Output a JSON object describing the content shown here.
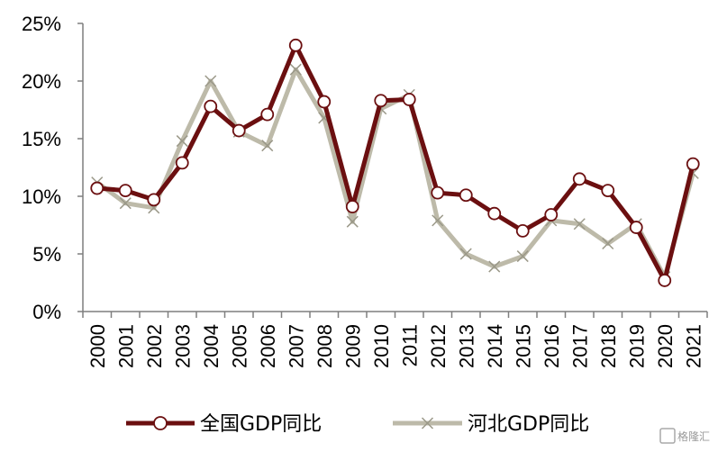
{
  "chart_data": {
    "type": "line",
    "categories": [
      "2000",
      "2001",
      "2002",
      "2003",
      "2004",
      "2005",
      "2006",
      "2007",
      "2008",
      "2009",
      "2010",
      "2011",
      "2012",
      "2013",
      "2014",
      "2015",
      "2016",
      "2017",
      "2018",
      "2019",
      "2020",
      "2021"
    ],
    "series": [
      {
        "name": "全国GDP同比",
        "values": [
          10.7,
          10.5,
          9.7,
          12.9,
          17.8,
          15.7,
          17.1,
          23.1,
          18.2,
          9.1,
          18.3,
          18.4,
          10.3,
          10.1,
          8.5,
          7.0,
          8.4,
          11.5,
          10.5,
          7.3,
          2.7,
          12.8
        ],
        "color": "#6b0f10",
        "marker": "circle"
      },
      {
        "name": "河北GDP同比",
        "values": [
          11.2,
          9.4,
          9.0,
          14.8,
          20.0,
          15.6,
          14.4,
          21.0,
          16.8,
          7.8,
          17.6,
          18.8,
          7.9,
          5.0,
          3.9,
          4.8,
          7.9,
          7.6,
          5.9,
          7.6,
          3.0,
          12.0
        ],
        "color": "#bdbaa9",
        "marker": "x"
      }
    ],
    "yticks": [
      "0%",
      "5%",
      "10%",
      "15%",
      "20%",
      "25%"
    ],
    "ylim": [
      0,
      25
    ],
    "legend_position": "bottom",
    "grid": false
  },
  "watermark": "格隆汇"
}
